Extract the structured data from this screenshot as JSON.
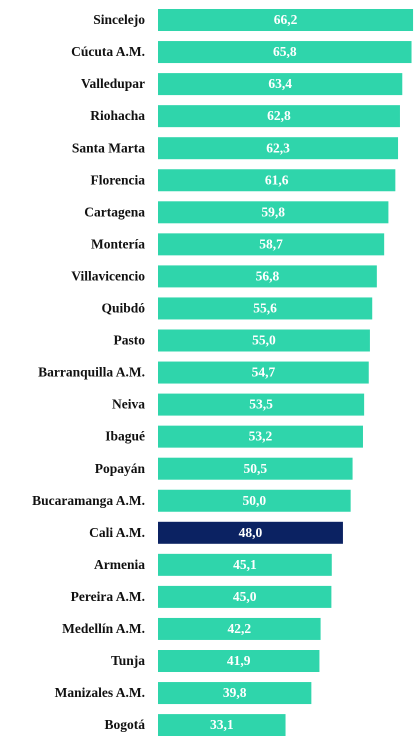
{
  "chart_data": {
    "type": "barh",
    "categories": [
      "Sincelejo",
      "Cúcuta A.M.",
      "Valledupar",
      "Riohacha",
      "Santa Marta",
      "Florencia",
      "Cartagena",
      "Montería",
      "Villavicencio",
      "Quibdó",
      "Pasto",
      "Barranquilla A.M.",
      "Neiva",
      "Ibagué",
      "Popayán",
      "Bucaramanga A.M.",
      "Cali A.M.",
      "Armenia",
      "Pereira A.M.",
      "Medellín A.M.",
      "Tunja",
      "Manizales A.M.",
      "Bogotá"
    ],
    "values": [
      66.2,
      65.8,
      63.4,
      62.8,
      62.3,
      61.6,
      59.8,
      58.7,
      56.8,
      55.6,
      55.0,
      54.7,
      53.5,
      53.2,
      50.5,
      50.0,
      48.0,
      45.1,
      45.0,
      42.2,
      41.9,
      39.8,
      33.1
    ],
    "value_labels": [
      "66,2",
      "65,8",
      "63,4",
      "62,8",
      "62,3",
      "61,6",
      "59,8",
      "58,7",
      "56,8",
      "55,6",
      "55,0",
      "54,7",
      "53,5",
      "53,2",
      "50,5",
      "50,0",
      "48,0",
      "45,1",
      "45,0",
      "42,2",
      "41,9",
      "39,8",
      "33,1"
    ],
    "colors": [
      "#2fd5ab",
      "#2fd5ab",
      "#2fd5ab",
      "#2fd5ab",
      "#2fd5ab",
      "#2fd5ab",
      "#2fd5ab",
      "#2fd5ab",
      "#2fd5ab",
      "#2fd5ab",
      "#2fd5ab",
      "#2fd5ab",
      "#2fd5ab",
      "#2fd5ab",
      "#2fd5ab",
      "#2fd5ab",
      "#0b2262",
      "#2fd5ab",
      "#2fd5ab",
      "#2fd5ab",
      "#2fd5ab",
      "#2fd5ab",
      "#2fd5ab"
    ],
    "xlim": [
      0,
      68
    ]
  }
}
